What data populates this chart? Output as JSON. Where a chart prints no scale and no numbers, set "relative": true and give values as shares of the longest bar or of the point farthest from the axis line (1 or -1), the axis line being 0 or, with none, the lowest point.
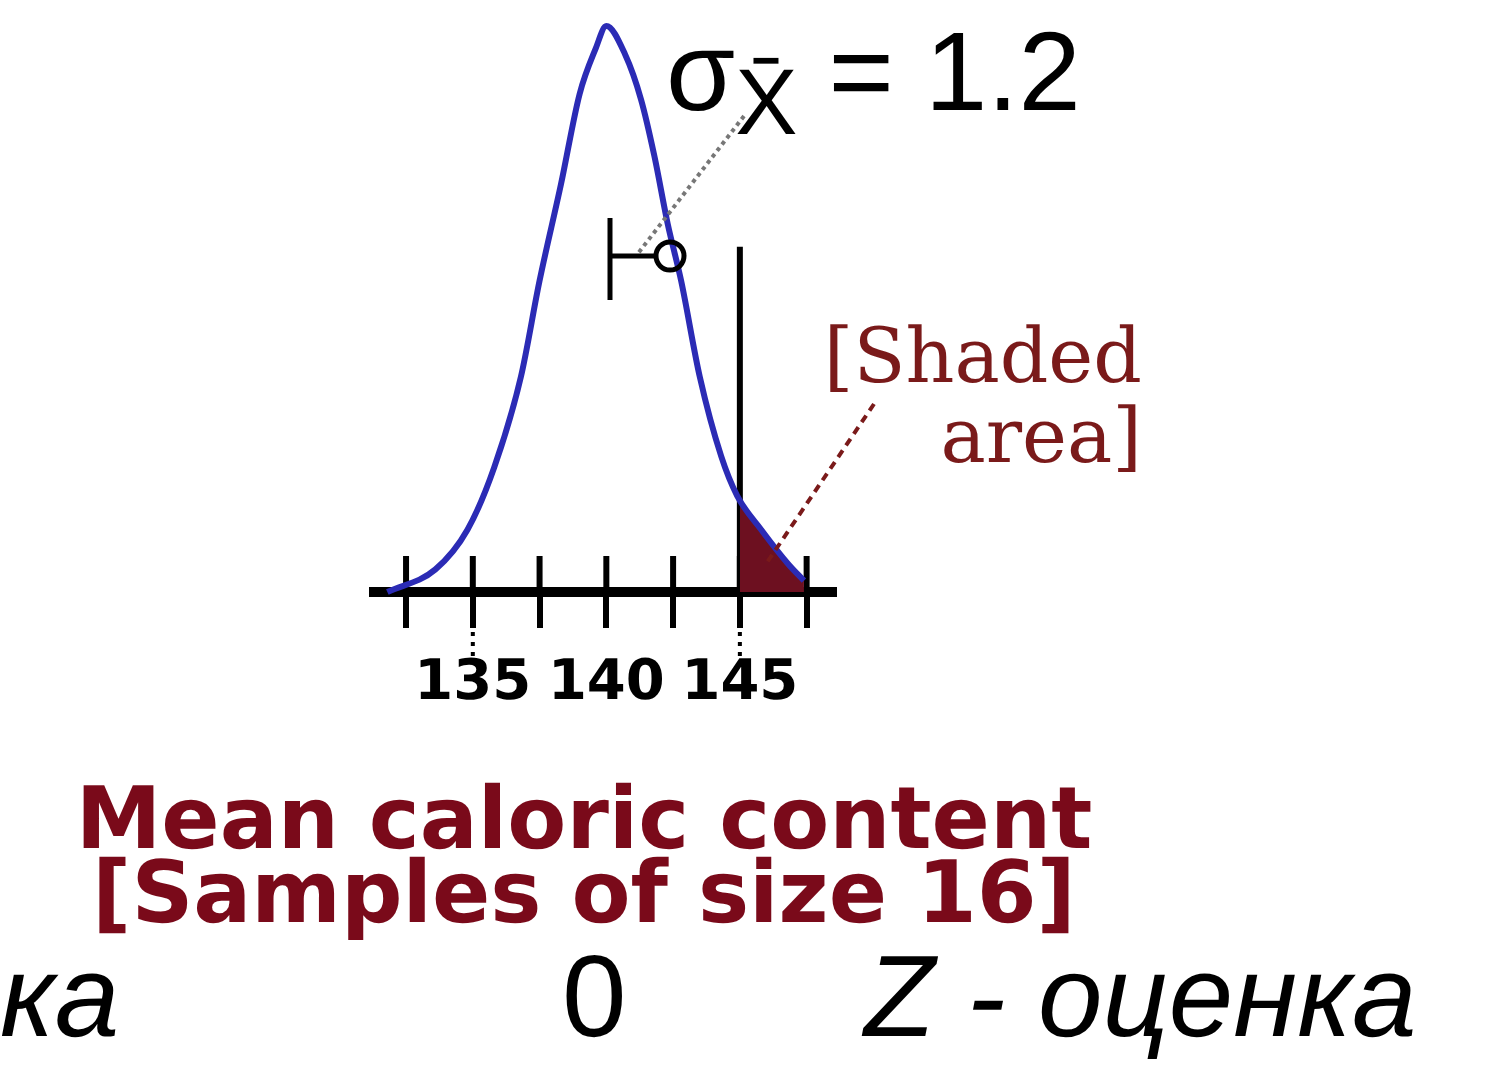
{
  "chart_data": {
    "type": "line",
    "relative": true,
    "xlabel": "Mean caloric content [Samples of size 16]",
    "xlim": [
      131.3,
      148.6
    ],
    "xticks": [
      {
        "value": 132.5,
        "label": null
      },
      135,
      {
        "value": 137.5,
        "label": null
      },
      140,
      {
        "value": 142.5,
        "label": null
      },
      145,
      {
        "value": 147.5,
        "label": null
      }
    ],
    "series": [
      {
        "color": "#2b2bb5",
        "x": [
          131.8,
          133.6,
          134.8,
          135.8,
          136.8,
          137.5,
          138.3,
          139.0,
          139.6,
          140.0,
          140.7,
          141.3,
          141.8,
          142.3,
          142.8,
          143.5,
          144.3,
          144.9,
          145.8,
          146.8,
          147.4
        ],
        "values": [
          0,
          0.04,
          0.11,
          0.22,
          0.38,
          0.55,
          0.72,
          0.88,
          0.96,
          1,
          0.95,
          0.87,
          0.77,
          0.65,
          0.55,
          0.38,
          0.24,
          0.17,
          0.11,
          0.05,
          0.02
        ]
      },
      {
        "type": "area",
        "color": "#6d1020",
        "x": [
          145,
          145.8,
          146.8,
          147.4
        ],
        "values": [
          0.16,
          0.11,
          0.05,
          0.02
        ]
      }
    ],
    "ref_lines": [
      {
        "axis": "x",
        "value": 145,
        "color": "#000000"
      }
    ],
    "annotations": [
      "σ$_{X̄}$ = 1.2",
      "[Shaded area]",
      "ка",
      "0",
      "Z - оценка"
    ]
  }
}
